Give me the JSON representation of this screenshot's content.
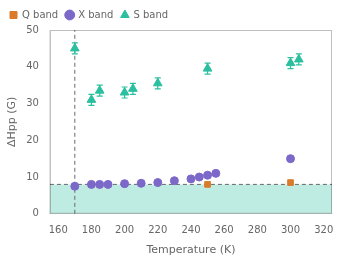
{
  "chart_data": {
    "type": "scatter",
    "xlabel": "Temperature (K)",
    "ylabel": "ΔHpp (G)",
    "xlim": [
      155,
      325
    ],
    "ylim": [
      0,
      50
    ],
    "xticks": [
      160,
      180,
      200,
      220,
      240,
      260,
      280,
      300,
      320
    ],
    "yticks": [
      0,
      10,
      20,
      30,
      40,
      50
    ],
    "grid": false,
    "legend": "upper left",
    "series": [
      {
        "name": "S band",
        "color": "#2abf9e",
        "marker": "triangle",
        "x": [
          170,
          180,
          185,
          200,
          205,
          220,
          250,
          300,
          305
        ],
        "values": [
          45.0,
          31.0,
          33.5,
          33.0,
          34.0,
          35.5,
          39.5,
          41.0,
          42.0
        ],
        "yerr": [
          1.5,
          1.5,
          1.5,
          1.5,
          1.5,
          1.5,
          1.5,
          1.5,
          1.5
        ]
      },
      {
        "name": "X band",
        "color": "#7b68c8",
        "marker": "circle",
        "x": [
          170,
          180,
          185,
          190,
          200,
          210,
          220,
          230,
          240,
          245,
          250,
          255,
          300
        ],
        "values": [
          7.5,
          8.0,
          8.0,
          8.0,
          8.2,
          8.3,
          8.5,
          9.0,
          9.5,
          10.0,
          10.5,
          11.0,
          15.0
        ]
      },
      {
        "name": "Q band",
        "color": "#d97b2a",
        "marker": "square",
        "x": [
          250,
          300
        ],
        "values": [
          8.0,
          8.5
        ]
      }
    ],
    "reference_lines": [
      {
        "axis": "y",
        "value": 8.0,
        "color": "#696969",
        "line_style": "dashed"
      },
      {
        "axis": "x",
        "value": 170,
        "color": "#696969",
        "line_style": "dashed"
      }
    ],
    "shaded_band": {
      "y_min": 0,
      "y_max": 8.0,
      "color": "#2abf9e"
    }
  }
}
